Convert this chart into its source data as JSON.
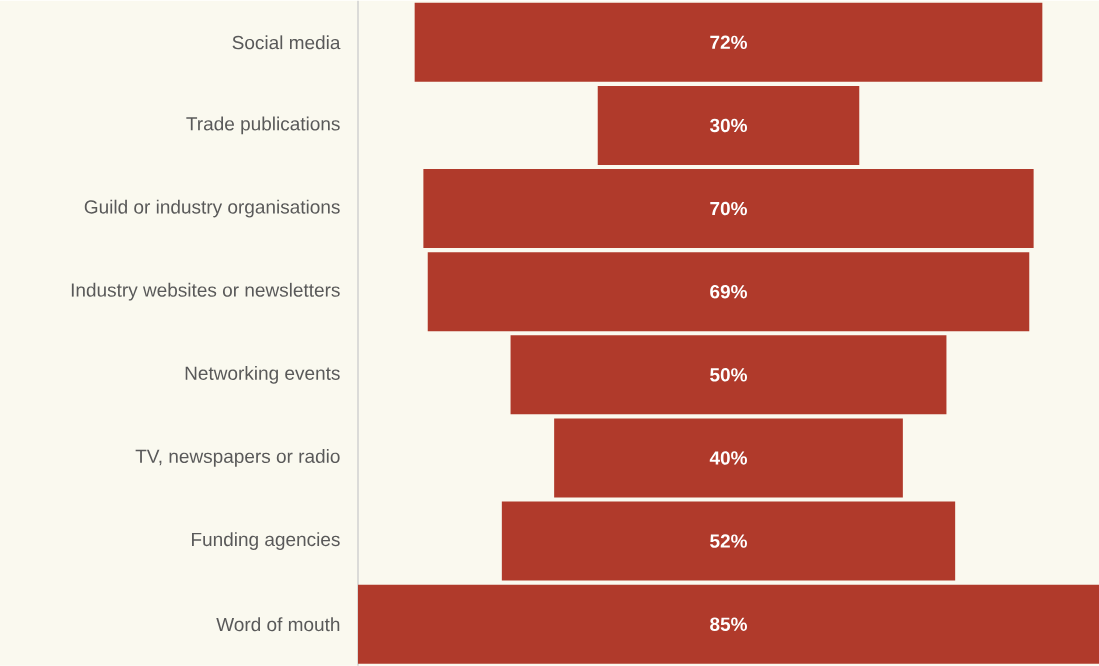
{
  "chart_data": {
    "type": "other",
    "categories": [
      "Social media",
      "Trade publications",
      "Guild or industry organisations",
      "Industry websites or newsletters",
      "Networking events",
      "TV, newspapers or radio",
      "Funding agencies",
      "Word of mouth"
    ],
    "values": [
      72,
      30,
      70,
      69,
      50,
      40,
      52,
      85
    ],
    "value_labels": [
      "72%",
      "30%",
      "70%",
      "69%",
      "50%",
      "40%",
      "52%",
      "85%"
    ],
    "color": "#b03a2b"
  }
}
